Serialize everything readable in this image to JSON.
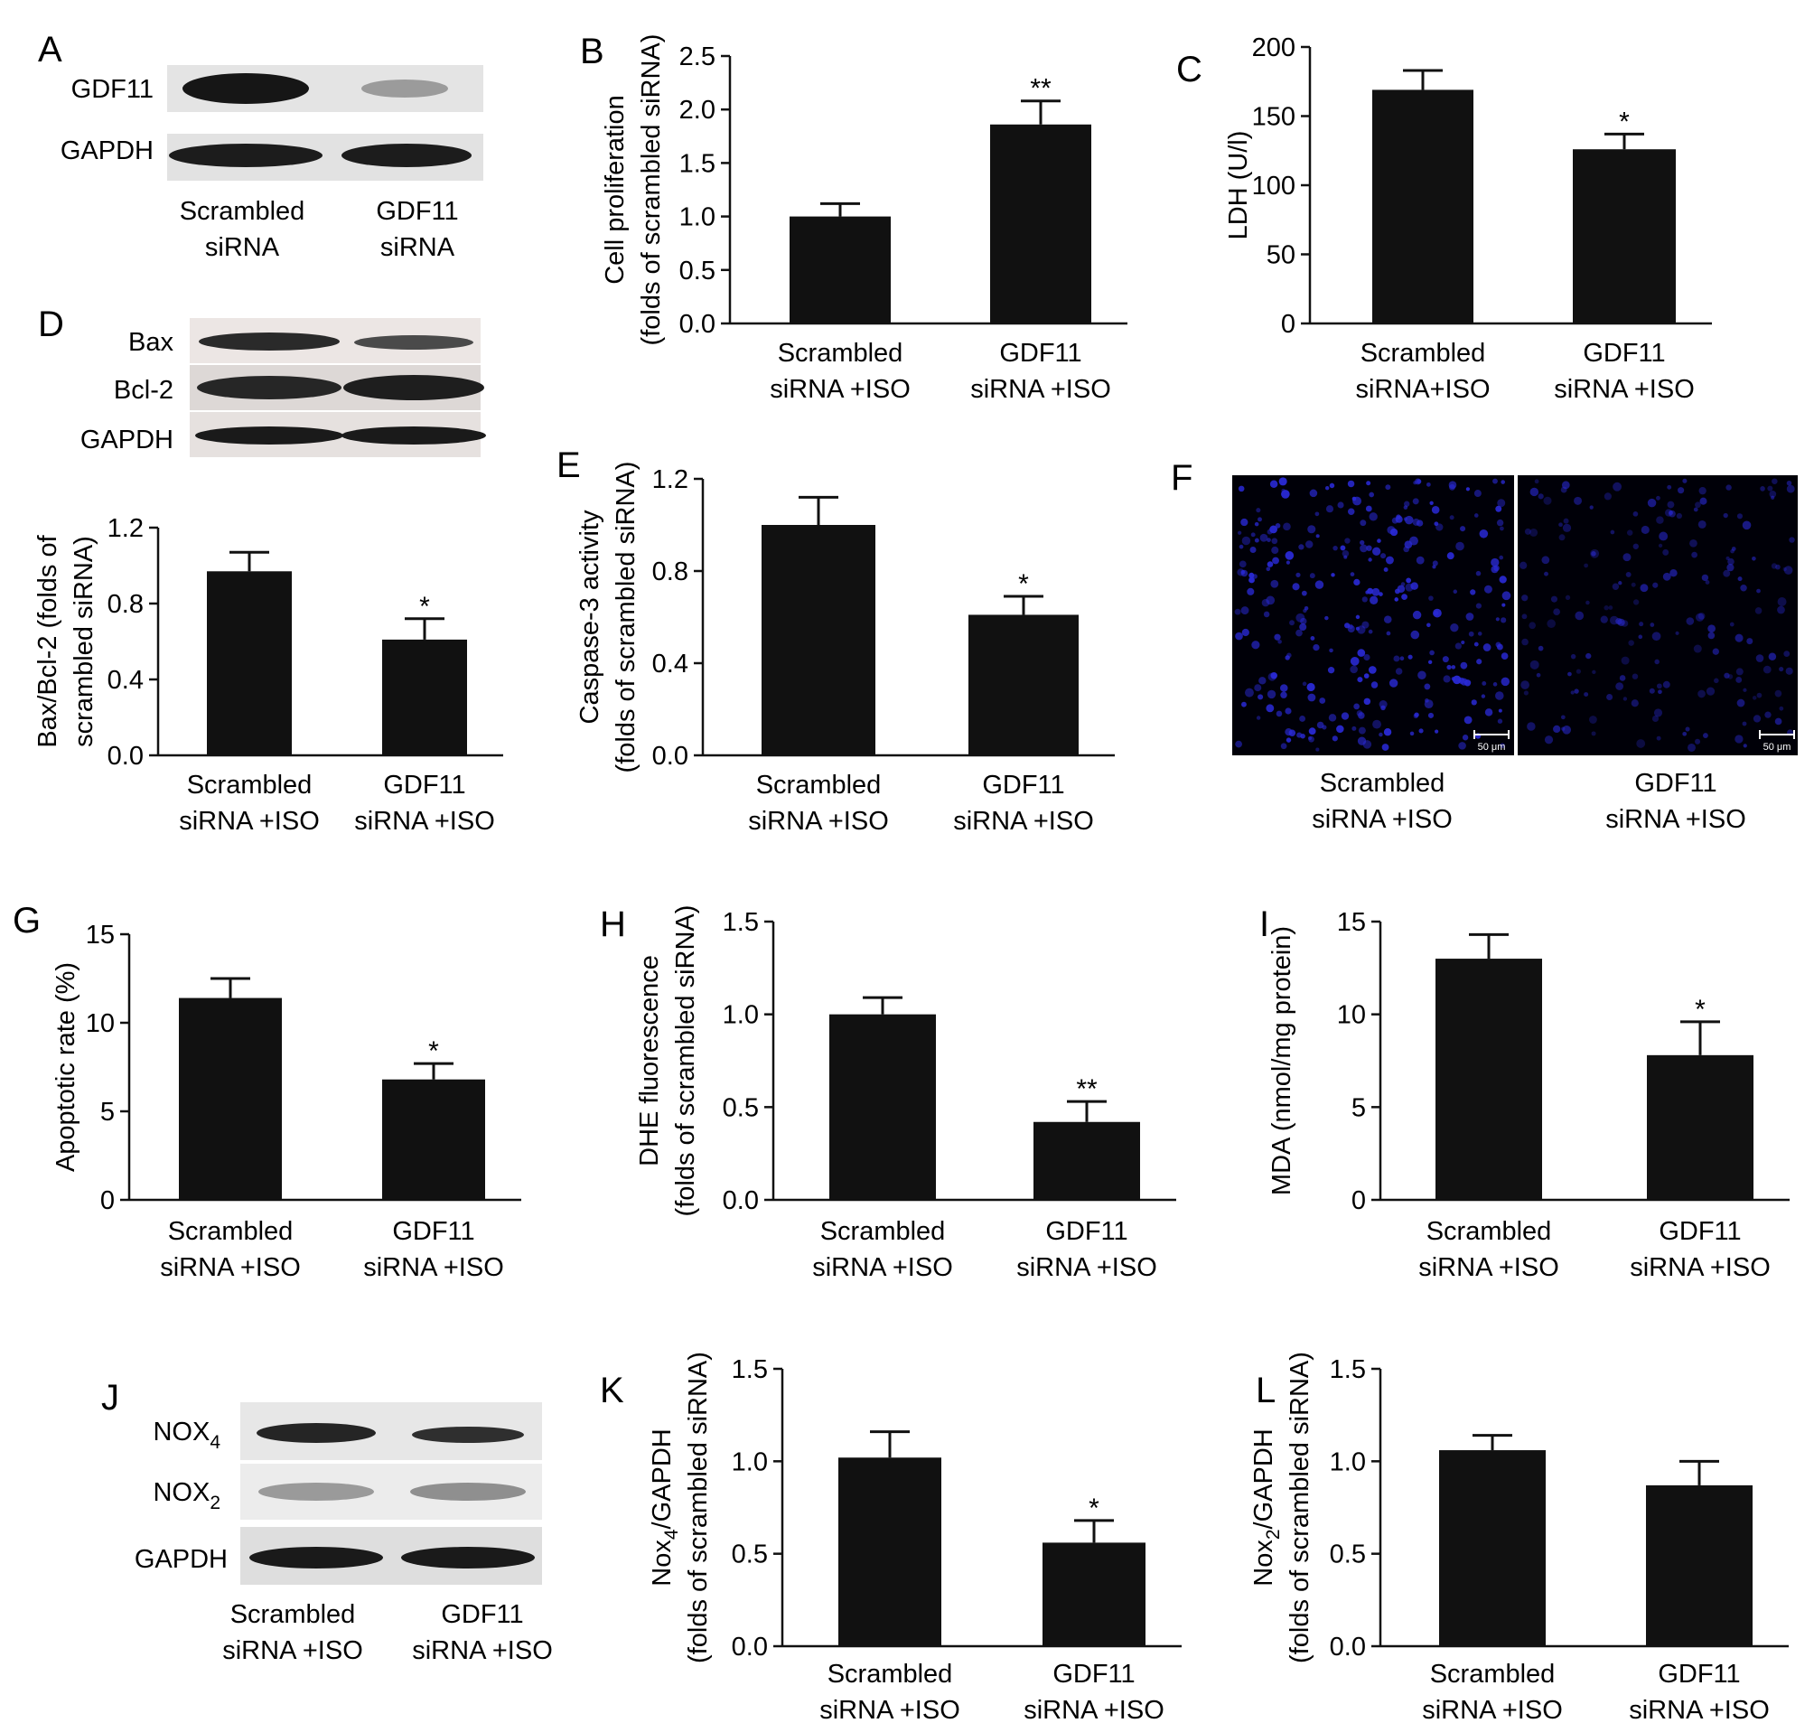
{
  "figure": {
    "panels": {
      "A": {
        "letter": "A",
        "blot_rows": [
          "GDF11",
          "GAPDH"
        ],
        "columns": [
          [
            "Scrambled",
            "siRNA"
          ],
          [
            "GDF11",
            "siRNA"
          ]
        ]
      },
      "D": {
        "letter": "D",
        "blot_rows": [
          "Bax",
          "Bcl-2",
          "GAPDH"
        ]
      },
      "F": {
        "letter": "F",
        "scale_bar_text": "50 μm",
        "columns": [
          [
            "Scrambled",
            "siRNA +ISO"
          ],
          [
            "GDF11",
            "siRNA +ISO"
          ]
        ]
      },
      "J": {
        "letter": "J",
        "blot_rows": [
          {
            "main": "NOX",
            "sub": "4"
          },
          {
            "main": "NOX",
            "sub": "2"
          },
          {
            "main": "GAPDH",
            "sub": ""
          }
        ],
        "columns": [
          [
            "Scrambled",
            "siRNA +ISO"
          ],
          [
            "GDF11",
            "siRNA +ISO"
          ]
        ]
      }
    },
    "colors": {
      "bar": "#111111",
      "axis": "#111111",
      "fluorescence_background": "#000008",
      "fluorescence_nuclei": "#2a2ad8"
    }
  },
  "chart_data": [
    {
      "panel": "B",
      "type": "bar",
      "categories": [
        [
          "Scrambled",
          "siRNA +ISO"
        ],
        [
          "GDF11",
          "siRNA +ISO"
        ]
      ],
      "values": [
        1.0,
        1.86
      ],
      "errors": [
        0.12,
        0.22
      ],
      "significance": [
        "",
        "**"
      ],
      "ylabel": [
        "Cell proliferation",
        "(folds of scrambled siRNA)"
      ],
      "ylim": [
        0,
        2.5
      ],
      "yticks": [
        "0.0",
        "0.5",
        "1.0",
        "1.5",
        "2.0",
        "2.5"
      ]
    },
    {
      "panel": "C",
      "type": "bar",
      "categories": [
        [
          "Scrambled",
          "siRNA+ISO"
        ],
        [
          "GDF11",
          "siRNA +ISO"
        ]
      ],
      "values": [
        169,
        126
      ],
      "errors": [
        14,
        11
      ],
      "significance": [
        "",
        "*"
      ],
      "ylabel": [
        "LDH (U/l)"
      ],
      "ylim": [
        0,
        200
      ],
      "yticks": [
        "0",
        "50",
        "100",
        "150",
        "200"
      ]
    },
    {
      "panel": "D",
      "type": "bar",
      "categories": [
        [
          "Scrambled",
          "siRNA +ISO"
        ],
        [
          "GDF11",
          "siRNA +ISO"
        ]
      ],
      "values": [
        0.97,
        0.61
      ],
      "errors": [
        0.1,
        0.11
      ],
      "significance": [
        "",
        "*"
      ],
      "ylabel": [
        "Bax/Bcl-2 (folds of",
        "scrambled siRNA)"
      ],
      "ylim": [
        0,
        1.2
      ],
      "yticks": [
        "0.0",
        "0.4",
        "0.8",
        "1.2"
      ]
    },
    {
      "panel": "E",
      "type": "bar",
      "categories": [
        [
          "Scrambled",
          "siRNA +ISO"
        ],
        [
          "GDF11",
          "siRNA +ISO"
        ]
      ],
      "values": [
        1.0,
        0.61
      ],
      "errors": [
        0.12,
        0.08
      ],
      "significance": [
        "",
        "*"
      ],
      "ylabel": [
        "Caspase-3 activity",
        "(folds of scrambled siRNA)"
      ],
      "ylim": [
        0,
        1.2
      ],
      "yticks": [
        "0.0",
        "0.4",
        "0.8",
        "1.2"
      ]
    },
    {
      "panel": "G",
      "type": "bar",
      "categories": [
        [
          "Scrambled",
          "siRNA +ISO"
        ],
        [
          "GDF11",
          "siRNA +ISO"
        ]
      ],
      "values": [
        11.4,
        6.8
      ],
      "errors": [
        1.1,
        0.9
      ],
      "significance": [
        "",
        "*"
      ],
      "ylabel": [
        "Apoptotic rate (%)"
      ],
      "ylim": [
        0,
        15
      ],
      "yticks": [
        "0",
        "5",
        "10",
        "15"
      ]
    },
    {
      "panel": "H",
      "type": "bar",
      "categories": [
        [
          "Scrambled",
          "siRNA +ISO"
        ],
        [
          "GDF11",
          "siRNA +ISO"
        ]
      ],
      "values": [
        1.0,
        0.42
      ],
      "errors": [
        0.09,
        0.11
      ],
      "significance": [
        "",
        "**"
      ],
      "ylabel": [
        "DHE fluorescence",
        "(folds of scrambled siRNA)"
      ],
      "ylim": [
        0,
        1.5
      ],
      "yticks": [
        "0.0",
        "0.5",
        "1.0",
        "1.5"
      ]
    },
    {
      "panel": "I",
      "type": "bar",
      "categories": [
        [
          "Scrambled",
          "siRNA +ISO"
        ],
        [
          "GDF11",
          "siRNA +ISO"
        ]
      ],
      "values": [
        13.0,
        7.8
      ],
      "errors": [
        1.3,
        1.8
      ],
      "significance": [
        "",
        "*"
      ],
      "ylabel": [
        "MDA (nmol/mg protein)"
      ],
      "ylim": [
        0,
        15
      ],
      "yticks": [
        "0",
        "5",
        "10",
        "15"
      ]
    },
    {
      "panel": "K",
      "type": "bar",
      "categories": [
        [
          "Scrambled",
          "siRNA +ISO"
        ],
        [
          "GDF11",
          "siRNA +ISO"
        ]
      ],
      "values": [
        1.02,
        0.56
      ],
      "errors": [
        0.14,
        0.12
      ],
      "significance": [
        "",
        "*"
      ],
      "ylabel": [
        "Nox4/GAPDH",
        "(folds of scrambled siRNA)"
      ],
      "ylabel_sub": {
        "line": 0,
        "text": "4"
      },
      "ylim": [
        0,
        1.5
      ],
      "yticks": [
        "0.0",
        "0.5",
        "1.0",
        "1.5"
      ]
    },
    {
      "panel": "L",
      "type": "bar",
      "categories": [
        [
          "Scrambled",
          "siRNA +ISO"
        ],
        [
          "GDF11",
          "siRNA +ISO"
        ]
      ],
      "values": [
        1.06,
        0.87
      ],
      "errors": [
        0.08,
        0.13
      ],
      "significance": [
        "",
        ""
      ],
      "ylabel": [
        "Nox2/GAPDH",
        "(folds of scrambled siRNA)"
      ],
      "ylabel_sub": {
        "line": 0,
        "text": "2"
      },
      "ylim": [
        0,
        1.5
      ],
      "yticks": [
        "0.0",
        "0.5",
        "1.0",
        "1.5"
      ]
    }
  ]
}
